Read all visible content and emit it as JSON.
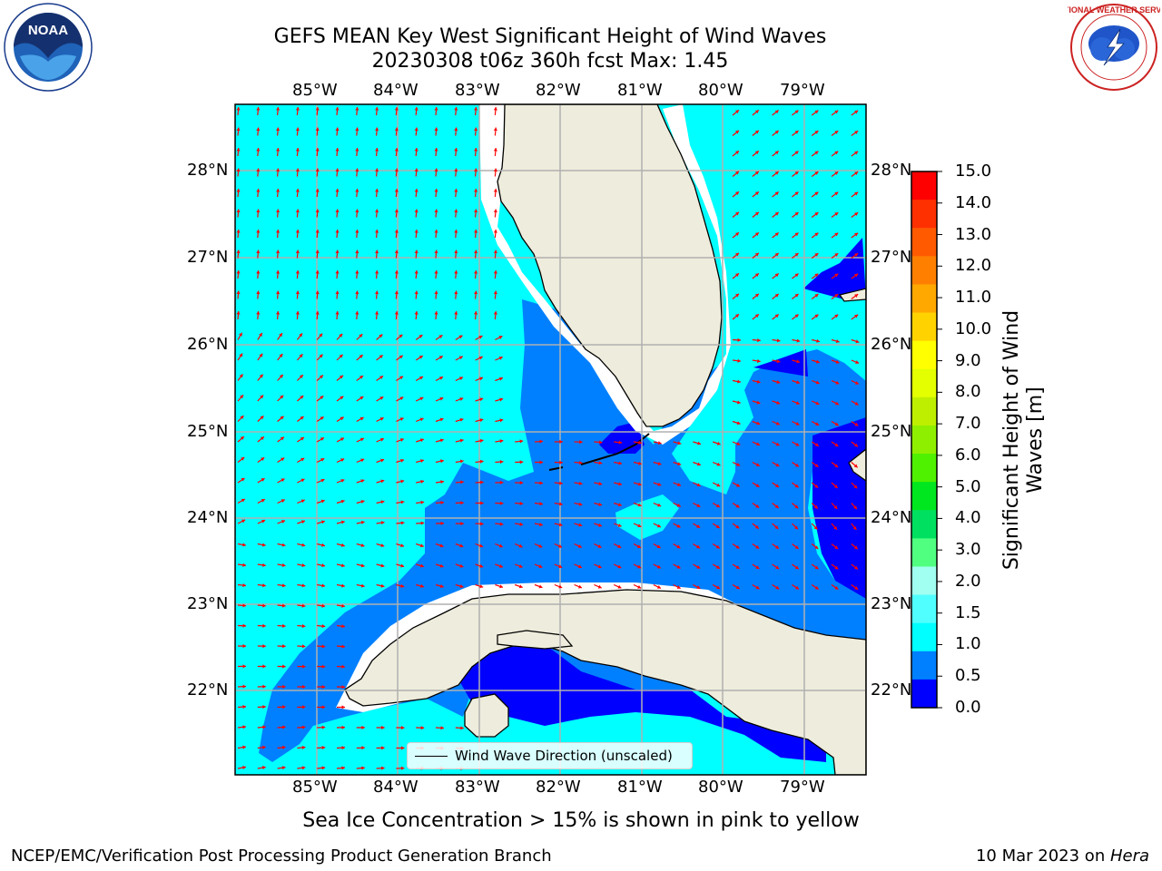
{
  "header": {
    "title_line1": "GEFS MEAN Key West Significant Height of Wind Waves",
    "title_line2": "20230308 t06z 360h fcst   Max: 1.45"
  },
  "logos": {
    "left": {
      "icon": "noaa-logo",
      "text": "NOAA",
      "ring_text": "NATIONAL OCEANIC AND ATMOSPHERIC ADMINISTRATION · U.S. DEPARTMENT OF COMMERCE"
    },
    "right": {
      "icon": "nws-logo",
      "ring_text": "NATIONAL WEATHER SERVICE"
    }
  },
  "map": {
    "lon_labels": [
      "85°W",
      "84°W",
      "83°W",
      "82°W",
      "81°W",
      "80°W",
      "79°W"
    ],
    "lat_labels": [
      "28°N",
      "27°N",
      "26°N",
      "25°N",
      "24°N",
      "23°N",
      "22°N"
    ],
    "legend_label": "Wind Wave Direction (unscaled)",
    "colors": {
      "land": "#eeecdc",
      "sea_0_0.5": "#0000ff",
      "sea_0.5_1.0": "#0080ff",
      "sea_1.0_1.5": "#00ffff",
      "arrows": "#ff0000",
      "grid": "#b0b0b0",
      "coast": "#000000"
    }
  },
  "colorbar": {
    "label": "Significant Height of Wind Waves [m]",
    "ticks": [
      "15.0",
      "14.0",
      "13.0",
      "12.0",
      "11.0",
      "10.0",
      "9.0",
      "8.0",
      "7.0",
      "6.0",
      "5.0",
      "4.0",
      "3.0",
      "2.0",
      "1.5",
      "1.0",
      "0.5",
      "0.0"
    ],
    "colors": [
      "#ff0000",
      "#ff3000",
      "#ff5a00",
      "#ff8000",
      "#ffa800",
      "#ffd200",
      "#ffff00",
      "#e4ff00",
      "#bfef00",
      "#8fef00",
      "#4ff000",
      "#00e61f",
      "#00e060",
      "#50ff80",
      "#a0fff0",
      "#50ffff",
      "#00ffff",
      "#0080ff",
      "#0000ff"
    ]
  },
  "footer": {
    "note": "Sea Ice Concentration > 15% is shown in pink to yellow",
    "credit_left": "NCEP/EMC/Verification Post Processing Product Generation Branch",
    "credit_date": "10 Mar 2023 on ",
    "credit_host": "Hera"
  }
}
